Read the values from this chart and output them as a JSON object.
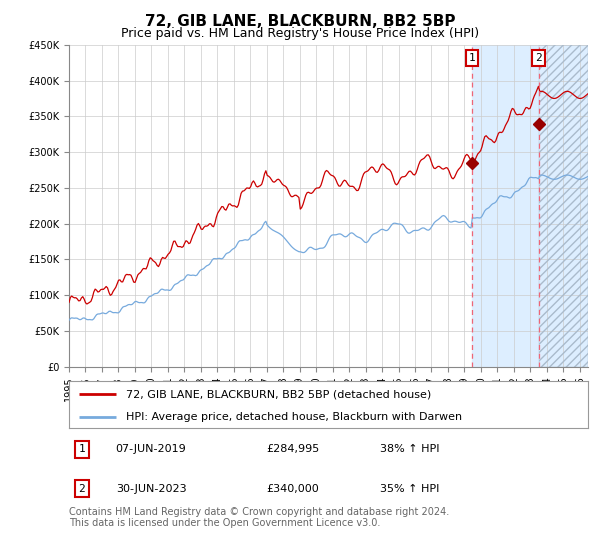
{
  "title": "72, GIB LANE, BLACKBURN, BB2 5BP",
  "subtitle": "Price paid vs. HM Land Registry's House Price Index (HPI)",
  "xlim_start": 1995.0,
  "xlim_end": 2026.5,
  "ylim_min": 0,
  "ylim_max": 450000,
  "red_line_color": "#cc0000",
  "blue_line_color": "#77aadd",
  "background_color": "#ffffff",
  "grid_color": "#cccccc",
  "marker1_date": 2019.44,
  "marker1_value": 284995,
  "marker2_date": 2023.5,
  "marker2_value": 340000,
  "vline1_date": 2019.44,
  "vline2_date": 2023.5,
  "shade_color": "#ddeeff",
  "forecast_hatch_color": "#aabbcc",
  "legend_label_red": "72, GIB LANE, BLACKBURN, BB2 5BP (detached house)",
  "legend_label_blue": "HPI: Average price, detached house, Blackburn with Darwen",
  "annotation1_label": "1",
  "annotation1_date": "07-JUN-2019",
  "annotation1_price": "£284,995",
  "annotation1_hpi": "38% ↑ HPI",
  "annotation2_label": "2",
  "annotation2_date": "30-JUN-2023",
  "annotation2_price": "£340,000",
  "annotation2_hpi": "35% ↑ HPI",
  "footer": "Contains HM Land Registry data © Crown copyright and database right 2024.\nThis data is licensed under the Open Government Licence v3.0.",
  "title_fontsize": 11,
  "subtitle_fontsize": 9,
  "tick_fontsize": 7,
  "legend_fontsize": 8,
  "annotation_fontsize": 8,
  "footer_fontsize": 7
}
